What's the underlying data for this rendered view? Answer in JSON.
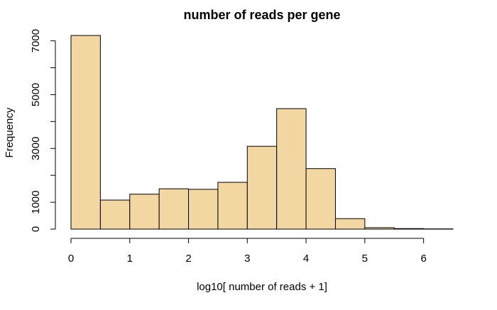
{
  "chart_data": {
    "type": "bar",
    "title": "number of reads per gene",
    "xlabel": "log10[ number of reads + 1]",
    "ylabel": "Frequency",
    "xlim": [
      0,
      6.5
    ],
    "ylim": [
      0,
      7200
    ],
    "x_ticks": [
      0,
      1,
      2,
      3,
      4,
      5,
      6
    ],
    "y_ticks": [
      0,
      1000,
      3000,
      5000,
      7000
    ],
    "y_minor_ticks": [
      2000,
      4000,
      6000
    ],
    "bin_edges": [
      0,
      0.5,
      1,
      1.5,
      2,
      2.5,
      3,
      3.5,
      4,
      4.5,
      5,
      5.5,
      6,
      6.5
    ],
    "values": [
      7200,
      1080,
      1300,
      1500,
      1480,
      1740,
      3080,
      4480,
      2250,
      390,
      55,
      20,
      10
    ],
    "bar_color": "#F3D7A3",
    "edge_color": "#000000",
    "grid": false,
    "legend": "none"
  }
}
